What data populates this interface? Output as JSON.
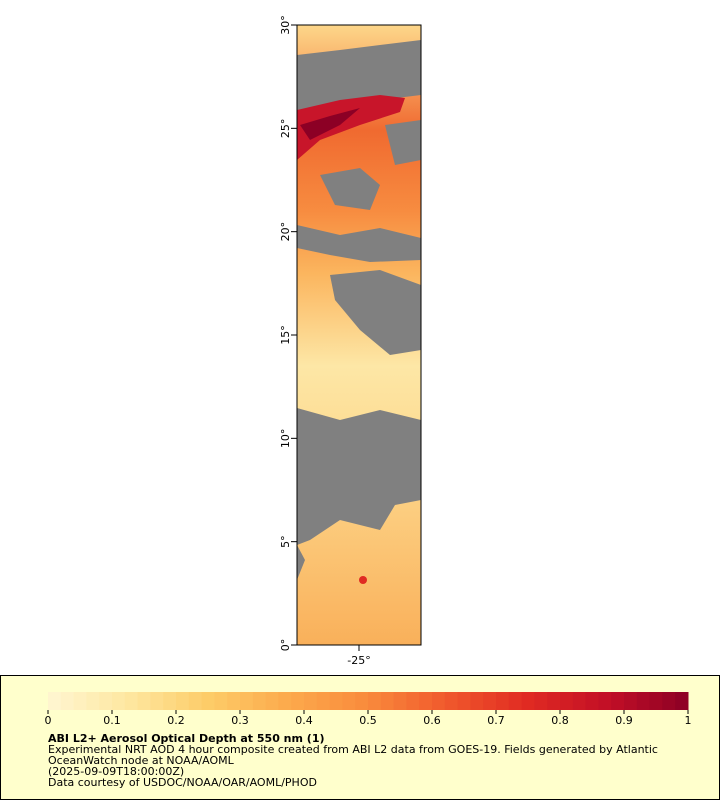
{
  "chart_data": {
    "type": "map",
    "xlim": [
      -28,
      -22
    ],
    "xticks": [
      {
        "value": -25,
        "label": "-25°"
      }
    ],
    "ylim": [
      0,
      30
    ],
    "yticks": [
      {
        "value": 0,
        "label": "0°"
      },
      {
        "value": 5,
        "label": "5°"
      },
      {
        "value": 10,
        "label": "10°"
      },
      {
        "value": 15,
        "label": "15°"
      },
      {
        "value": 20,
        "label": "20°"
      },
      {
        "value": 25,
        "label": "25°"
      },
      {
        "value": 30,
        "label": "30°"
      }
    ],
    "colorbar": {
      "lim": [
        0,
        1
      ],
      "ticks": [
        0,
        0.1,
        0.2,
        0.3,
        0.4,
        0.5,
        0.6,
        0.7,
        0.8,
        0.9,
        1
      ],
      "colors": [
        "#fff6d2",
        "#fee7a0",
        "#fdcc68",
        "#fcaa4c",
        "#f98a3c",
        "#f0582c",
        "#e02a22",
        "#c20f26",
        "#8c0025"
      ]
    },
    "title": "ABI L2+ Aerosol Optical Depth at 550 nm (1)",
    "notes": [
      "Experimental NRT AOD 4 hour composite created from ABI L2 data from GOES-19. Fields generated by Atlantic",
      "OceanWatch node at NOAA/AOML",
      "(2025-09-09T18:00:00Z)",
      "Data courtesy of USDOC/NOAA/OAR/AOML/PHOD"
    ]
  }
}
